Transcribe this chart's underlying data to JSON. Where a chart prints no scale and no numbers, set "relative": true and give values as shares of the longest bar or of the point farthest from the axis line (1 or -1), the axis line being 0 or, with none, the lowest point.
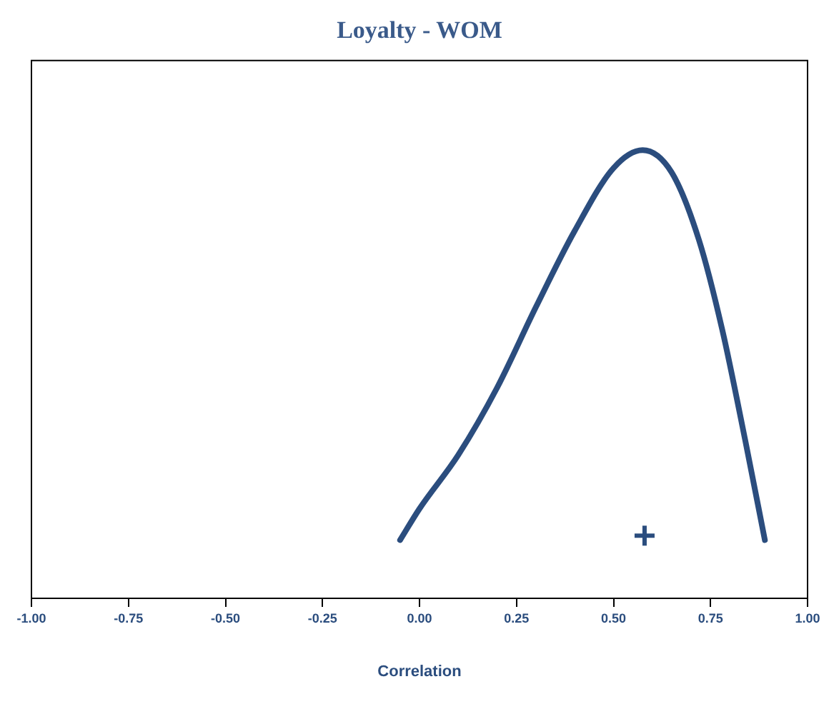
{
  "chart_data": {
    "type": "line",
    "title": "Loyalty - WOM",
    "xlabel": "Correlation",
    "relative": true,
    "xlim": [
      -1,
      1
    ],
    "xticks": [
      {
        "value": -1,
        "label": "-1.00"
      },
      {
        "value": -0.75,
        "label": "-0.75"
      },
      {
        "value": -0.5,
        "label": "-0.50"
      },
      {
        "value": -0.25,
        "label": "-0.25"
      },
      {
        "value": 0,
        "label": "0.00"
      },
      {
        "value": 0.25,
        "label": "0.25"
      },
      {
        "value": 0.5,
        "label": "0.50"
      },
      {
        "value": 0.75,
        "label": "0.75"
      },
      {
        "value": 1,
        "label": "1.00"
      }
    ],
    "series": [
      {
        "color": "#2b4d7e",
        "marker": "none",
        "x": [
          -0.05,
          0,
          0.1,
          0.2,
          0.3,
          0.4,
          0.5,
          0.575,
          0.65,
          0.72,
          0.78,
          0.84,
          0.89
        ],
        "values": [
          0.13,
          0.2,
          0.32,
          0.47,
          0.65,
          0.82,
          0.96,
          1,
          0.95,
          0.8,
          0.6,
          0.35,
          0.13
        ]
      },
      {
        "type": "scatter",
        "color": "#2b4d7e",
        "marker": "cross",
        "x": [
          0.58
        ],
        "values": [
          0.14
        ]
      }
    ]
  }
}
